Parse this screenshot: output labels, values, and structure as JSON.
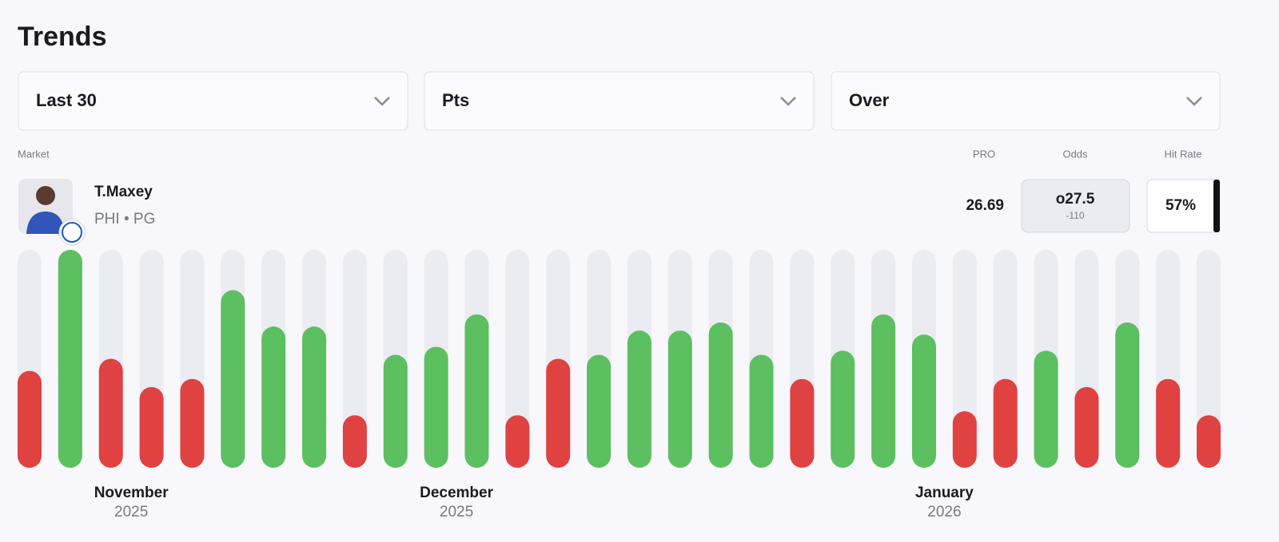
{
  "title": "Trends",
  "filters": [
    "Last 30",
    "Pts",
    "Over"
  ],
  "header_labels": {
    "market": "Market",
    "pro": "PRO",
    "odds": "Odds",
    "hit_rate": "Hit Rate"
  },
  "player": {
    "name": "T.Maxey",
    "team": "PHI",
    "position": "PG",
    "pro": 26.69,
    "odds": {
      "line": {
        "value": 27.5,
        "label": "o27.5"
      },
      "price": "-110"
    },
    "hit_rate": "57%"
  },
  "chart_data": {
    "type": "bar",
    "categories": [
      null,
      null,
      "November",
      null,
      null,
      null,
      null,
      null,
      null,
      null,
      "December",
      null,
      null,
      null,
      null,
      null,
      null,
      null,
      null,
      null,
      null,
      null,
      "January",
      null,
      null,
      null,
      null,
      null,
      null,
      null
    ],
    "years": [
      null,
      null,
      "2025",
      null,
      null,
      null,
      null,
      null,
      null,
      null,
      "2025",
      null,
      null,
      null,
      null,
      null,
      null,
      null,
      null,
      null,
      null,
      null,
      "2026",
      null,
      null,
      null,
      null,
      null,
      null,
      null
    ],
    "values": [
      24,
      54,
      27,
      20,
      22,
      44,
      35,
      35,
      13,
      28,
      30,
      38,
      13,
      27,
      28,
      34,
      34,
      36,
      28,
      22,
      29,
      38,
      33,
      14,
      22,
      29,
      20,
      36,
      22,
      13
    ],
    "ylim": [
      0,
      54
    ],
    "over_color": "#5cbf60",
    "under_color": "#e04141",
    "track_color": "#ebebf2"
  }
}
